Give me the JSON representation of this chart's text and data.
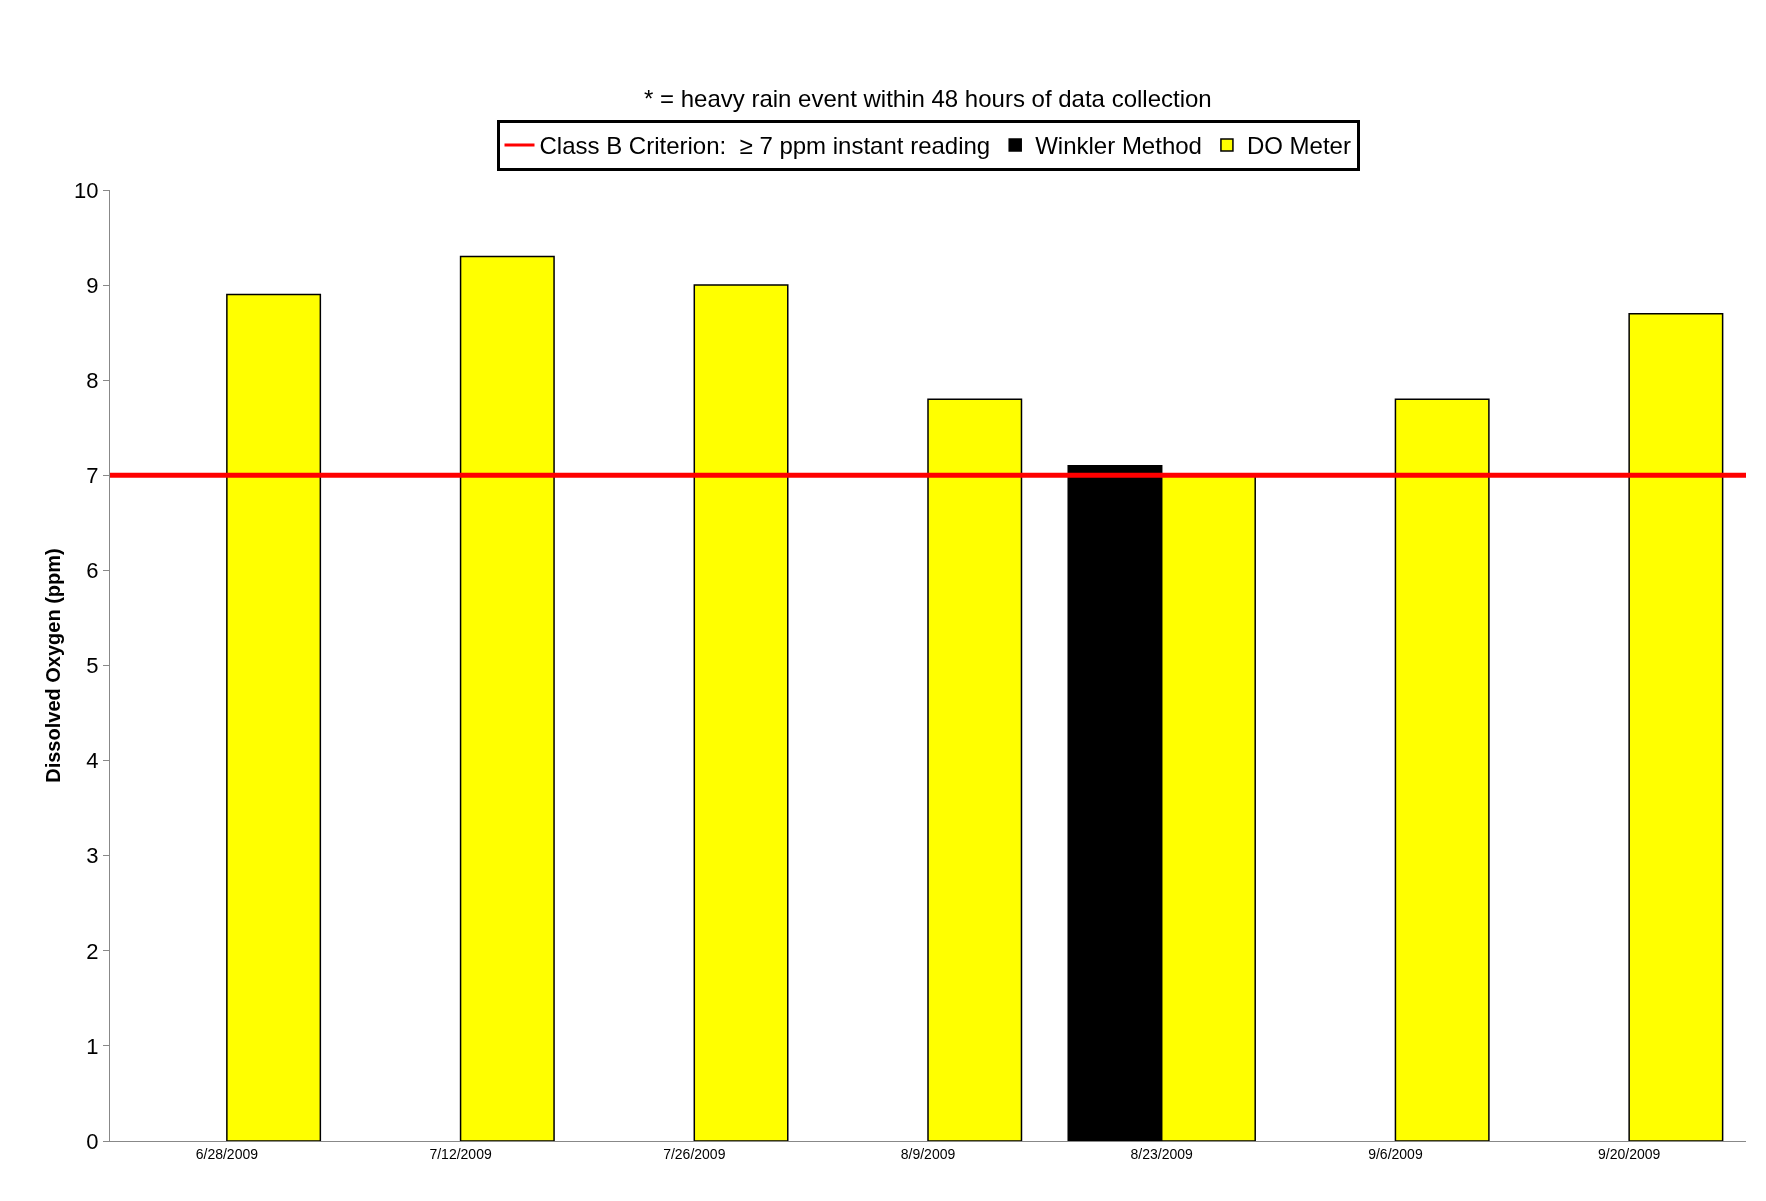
{
  "chart_data": {
    "type": "bar",
    "ylabel": "Dissolved Oxygen (ppm)",
    "categories": [
      "6/28/2009",
      "7/12/2009",
      "7/26/2009",
      "8/9/2009",
      "8/23/2009",
      "9/6/2009",
      "9/20/2009"
    ],
    "series": [
      {
        "name": "Winkler Method",
        "color": "#000000",
        "values": [
          null,
          null,
          null,
          null,
          7.1,
          null,
          null
        ]
      },
      {
        "name": "DO Meter",
        "color": "#ffff00",
        "values": [
          8.9,
          9.3,
          9.0,
          7.8,
          7.0,
          7.8,
          8.7
        ]
      }
    ],
    "ylim": [
      0,
      10
    ],
    "yticks": [
      0,
      1,
      2,
      3,
      4,
      5,
      6,
      7,
      8,
      9,
      10
    ],
    "grid": false,
    "legend": "top",
    "ref_lines": [
      {
        "axis": "y",
        "value": 7,
        "label": "Class B Criterion:  ≥ 7 ppm instant reading",
        "color": "#ff0000"
      }
    ],
    "annotations": [
      "* = heavy rain event within 48 hours of data collection"
    ]
  }
}
